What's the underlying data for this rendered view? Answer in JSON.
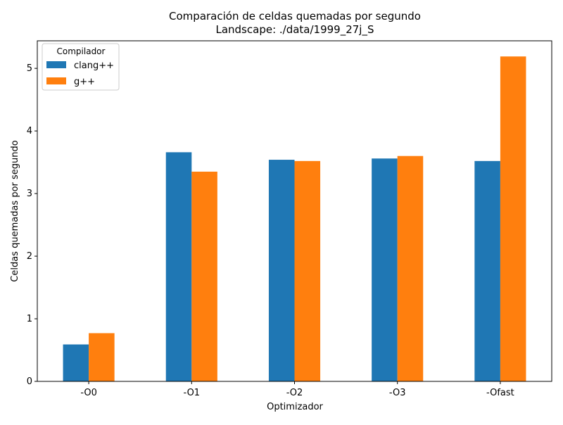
{
  "chart_data": {
    "type": "bar",
    "title": "Comparación de celdas quemadas por segundo",
    "subtitle": "Landscape: ./data/1999_27j_S",
    "xlabel": "Optimizador",
    "ylabel": "Celdas quemadas por segundo",
    "categories": [
      "-O0",
      "-O1",
      "-O2",
      "-O3",
      "-Ofast"
    ],
    "series": [
      {
        "name": "clang++",
        "color": "#1f77b4",
        "values": [
          0.59,
          3.66,
          3.54,
          3.56,
          3.52
        ]
      },
      {
        "name": "g++",
        "color": "#ff7f0e",
        "values": [
          0.77,
          3.35,
          3.52,
          3.6,
          5.19
        ]
      }
    ],
    "ylim": [
      0,
      5.44
    ],
    "yticks": [
      0,
      1,
      2,
      3,
      4,
      5
    ],
    "legend": {
      "title": "Compilador",
      "placement": "top-left"
    },
    "grid": false
  }
}
